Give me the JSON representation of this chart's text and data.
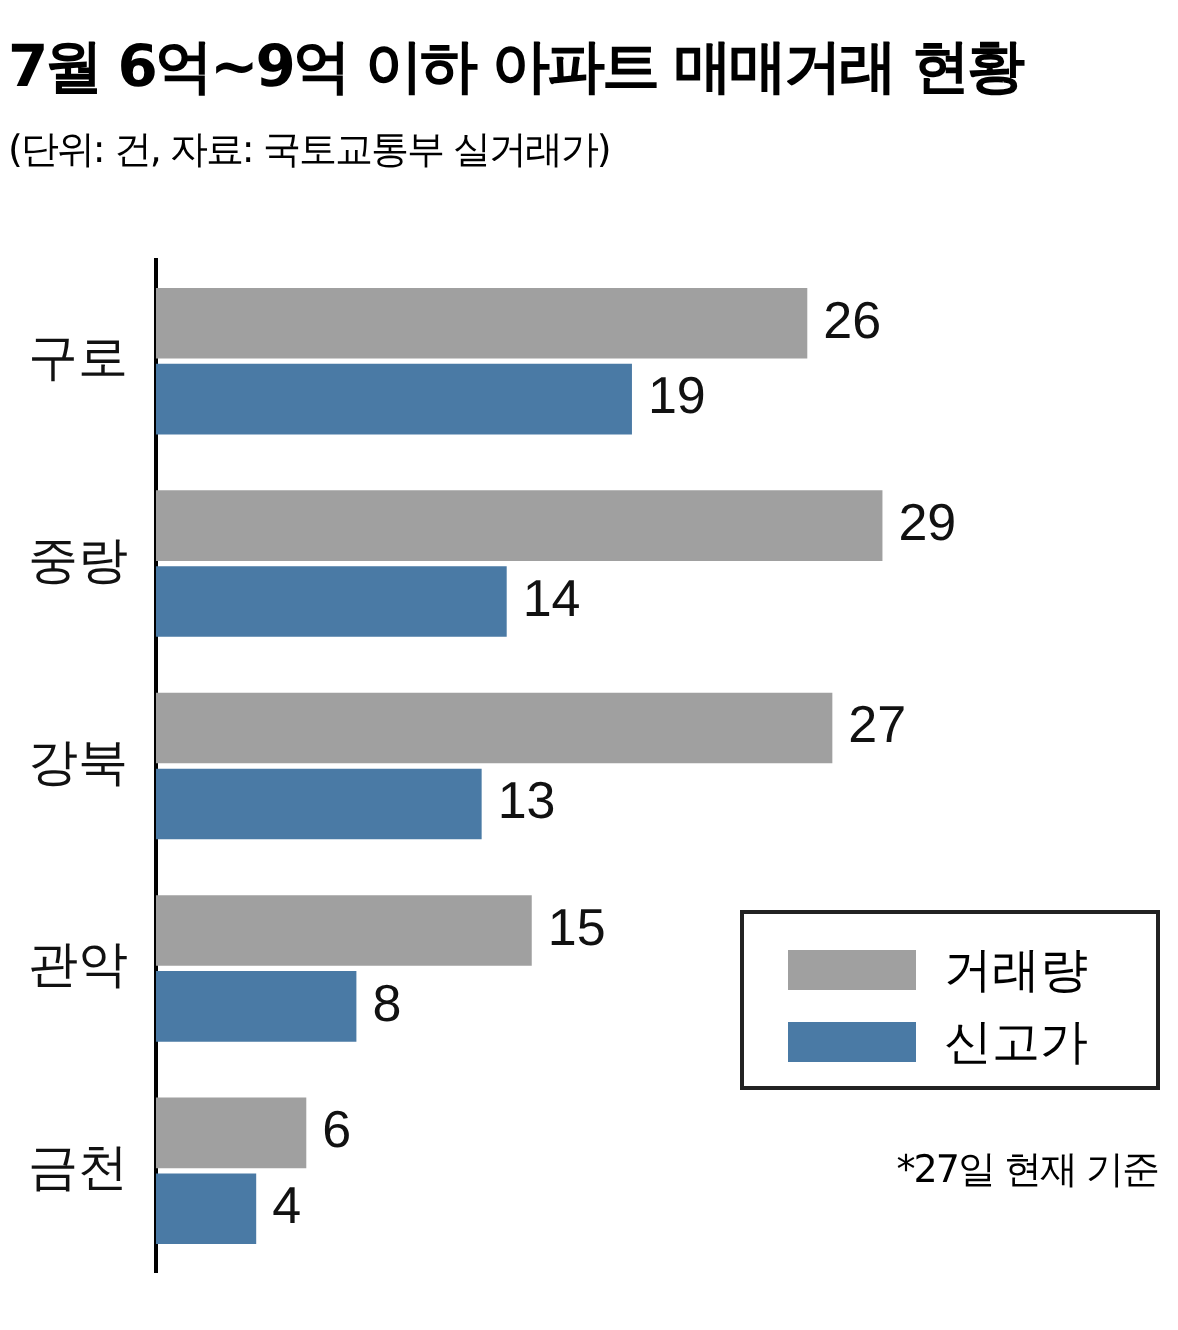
{
  "chart_data": {
    "type": "bar",
    "orientation": "horizontal",
    "title": "7월 6억~9억 이하 아파트 매매거래 현황",
    "subtitle": "(단위: 건, 자료: 국토교통부 실거래가)",
    "categories": [
      "구로",
      "중랑",
      "강북",
      "관악",
      "금천"
    ],
    "series": [
      {
        "name": "거래량",
        "color": "#a0a0a0",
        "values": [
          26,
          29,
          27,
          15,
          6
        ]
      },
      {
        "name": "신고가",
        "color": "#4a7aa5",
        "values": [
          19,
          14,
          13,
          8,
          4
        ]
      }
    ],
    "xlim": [
      0,
      40
    ],
    "tick_labels": "y",
    "legend": "bottom right",
    "data_labels": true,
    "annotations": [
      "*27일 현재 기준"
    ]
  }
}
